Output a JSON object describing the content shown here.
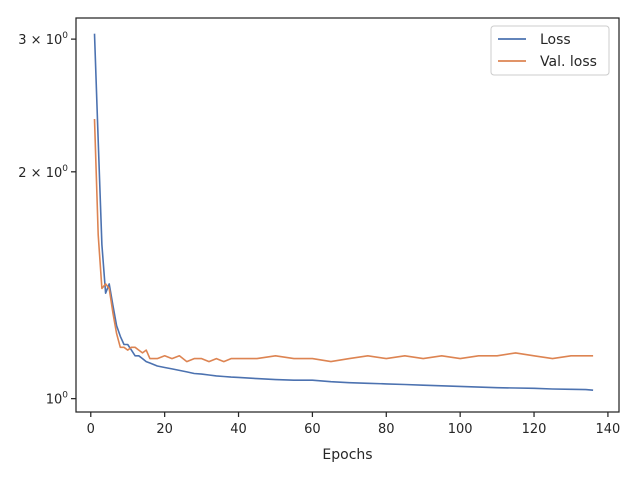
{
  "chart_data": {
    "type": "line",
    "xlabel": "Epochs",
    "ylabel": "",
    "xlim": [
      -4,
      143
    ],
    "ylim": [
      0.96,
      3.2
    ],
    "yscale": "log",
    "grid": false,
    "legend_position": "top-right",
    "x_ticks": [
      0,
      20,
      40,
      60,
      80,
      100,
      120,
      140
    ],
    "x_tick_labels": [
      "0",
      "20",
      "40",
      "60",
      "80",
      "100",
      "120",
      "140"
    ],
    "y_ticks": [
      1,
      2,
      3
    ],
    "y_tick_labels": [
      {
        "base": "1 × 10",
        "exp": "0",
        "mant": ""
      },
      {
        "base": "2 × 10",
        "exp": "0"
      },
      {
        "base": "3 × 10",
        "exp": "0"
      }
    ],
    "colors": {
      "loss": "#4c72b0",
      "val_loss": "#dd8452",
      "axes": "#262626"
    },
    "series": [
      {
        "name": "Loss",
        "color": "#4c72b0",
        "x": [
          1,
          2,
          3,
          4,
          5,
          6,
          7,
          8,
          9,
          10,
          11,
          12,
          13,
          14,
          15,
          16,
          18,
          20,
          22,
          24,
          26,
          28,
          30,
          32,
          34,
          36,
          38,
          40,
          45,
          50,
          55,
          60,
          65,
          70,
          75,
          80,
          85,
          90,
          95,
          100,
          105,
          110,
          115,
          120,
          125,
          130,
          134,
          136
        ],
        "values": [
          3.05,
          2.2,
          1.6,
          1.38,
          1.42,
          1.33,
          1.25,
          1.21,
          1.18,
          1.18,
          1.16,
          1.14,
          1.14,
          1.13,
          1.12,
          1.115,
          1.105,
          1.1,
          1.095,
          1.09,
          1.085,
          1.08,
          1.078,
          1.075,
          1.072,
          1.07,
          1.068,
          1.067,
          1.063,
          1.06,
          1.058,
          1.058,
          1.053,
          1.05,
          1.048,
          1.046,
          1.044,
          1.042,
          1.04,
          1.038,
          1.036,
          1.034,
          1.033,
          1.032,
          1.03,
          1.029,
          1.028,
          1.026
        ]
      },
      {
        "name": "Val. loss",
        "color": "#dd8452",
        "x": [
          1,
          2,
          3,
          4,
          5,
          6,
          7,
          8,
          9,
          10,
          11,
          12,
          13,
          14,
          15,
          16,
          18,
          20,
          22,
          24,
          26,
          28,
          30,
          32,
          34,
          36,
          38,
          40,
          45,
          50,
          55,
          60,
          65,
          70,
          75,
          80,
          85,
          90,
          95,
          100,
          105,
          110,
          115,
          120,
          125,
          130,
          134,
          136
        ],
        "values": [
          2.35,
          1.65,
          1.4,
          1.42,
          1.4,
          1.3,
          1.22,
          1.17,
          1.17,
          1.16,
          1.17,
          1.17,
          1.16,
          1.15,
          1.16,
          1.13,
          1.13,
          1.14,
          1.13,
          1.14,
          1.12,
          1.13,
          1.13,
          1.12,
          1.13,
          1.12,
          1.13,
          1.13,
          1.13,
          1.14,
          1.13,
          1.13,
          1.12,
          1.13,
          1.14,
          1.13,
          1.14,
          1.13,
          1.14,
          1.13,
          1.14,
          1.14,
          1.15,
          1.14,
          1.13,
          1.14,
          1.14,
          1.14
        ]
      }
    ]
  }
}
